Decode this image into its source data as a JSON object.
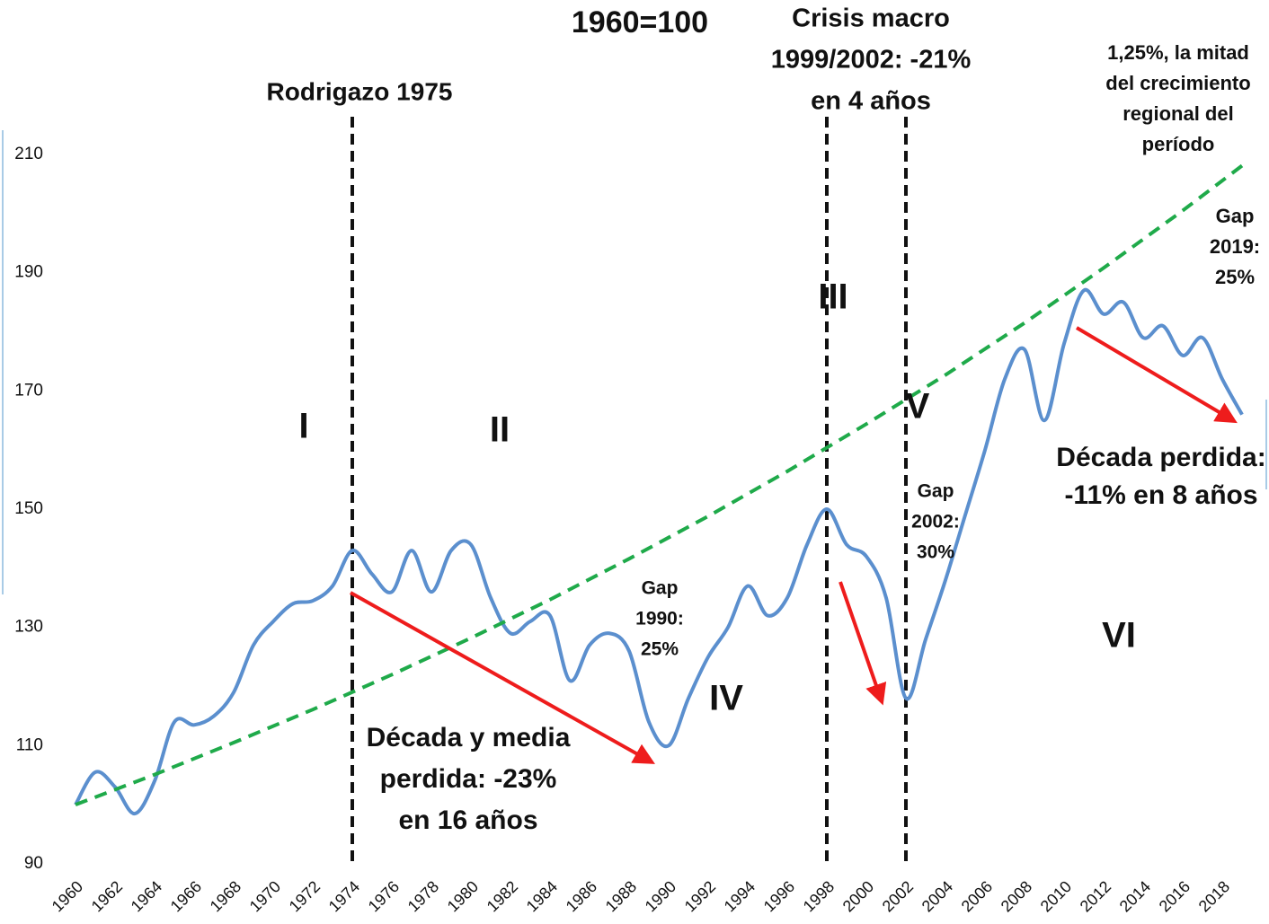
{
  "chart_data": {
    "type": "line",
    "title": "1960=100",
    "xlim": [
      1960,
      2019
    ],
    "ylim": [
      90,
      210
    ],
    "yticks": [
      90,
      110,
      130,
      150,
      170,
      190,
      210
    ],
    "xticks": [
      1960,
      1962,
      1964,
      1966,
      1968,
      1970,
      1972,
      1974,
      1976,
      1978,
      1980,
      1982,
      1984,
      1986,
      1988,
      1990,
      1992,
      1994,
      1996,
      1998,
      2000,
      2002,
      2004,
      2006,
      2008,
      2010,
      2012,
      2014,
      2016,
      2018
    ],
    "grid": false,
    "series": [
      {
        "color": "#5b8fce",
        "x": [
          1960,
          1961,
          1962,
          1963,
          1964,
          1965,
          1966,
          1967,
          1968,
          1969,
          1970,
          1971,
          1972,
          1973,
          1974,
          1975,
          1976,
          1977,
          1978,
          1979,
          1980,
          1981,
          1982,
          1983,
          1984,
          1985,
          1986,
          1987,
          1988,
          1989,
          1990,
          1991,
          1992,
          1993,
          1994,
          1995,
          1996,
          1997,
          1998,
          1999,
          2000,
          2001,
          2002,
          2003,
          2004,
          2005,
          2006,
          2007,
          2008,
          2009,
          2010,
          2011,
          2012,
          2013,
          2014,
          2015,
          2016,
          2017,
          2018,
          2019
        ],
        "values": [
          100,
          105.5,
          103,
          98.5,
          104,
          114,
          113.5,
          115,
          119,
          127,
          131,
          134,
          134.5,
          137,
          143,
          139,
          136,
          143,
          136,
          143,
          144,
          135,
          129,
          131,
          132,
          121,
          127,
          129,
          126,
          114,
          110,
          118,
          125,
          130,
          137,
          132,
          135,
          144,
          150,
          144,
          142,
          135,
          118,
          128,
          138,
          149,
          160,
          172,
          177,
          165,
          178,
          187,
          183,
          185,
          179,
          181,
          176,
          179,
          172,
          166
        ]
      },
      {
        "color": "#1faa4a",
        "dashed": true,
        "x": [
          1960,
          1964,
          1968,
          1972,
          1976,
          1980,
          1984,
          1988,
          1992,
          1996,
          2000,
          2004,
          2008,
          2012,
          2016,
          2019
        ],
        "values": [
          100,
          105.1,
          110.5,
          116.1,
          122.0,
          128.2,
          134.7,
          141.6,
          148.8,
          156.4,
          164.4,
          172.7,
          181.5,
          190.8,
          200.5,
          208.1
        ]
      }
    ],
    "vlines": [
      1974,
      1998,
      2002
    ],
    "annotations": [
      {
        "lines": [
          "Rodrigazo 1975"
        ]
      },
      {
        "lines": [
          "Crisis macro",
          "1999/2002: -21%",
          "en 4 años"
        ]
      },
      {
        "lines": [
          "1,25%, la mitad",
          "del crecimiento",
          "regional del",
          "período"
        ]
      },
      {
        "lines": [
          "Gap",
          "2019:",
          "25%"
        ]
      },
      {
        "lines": [
          "Gap",
          "1990:",
          "25%"
        ]
      },
      {
        "lines": [
          "Gap",
          "2002:",
          "30%"
        ]
      },
      {
        "lines": [
          "Década y media",
          "perdida: -23%",
          "en 16 años"
        ]
      },
      {
        "lines": [
          "Década perdida:",
          "-11% en 8 años"
        ]
      },
      {
        "lines": [
          "I"
        ]
      },
      {
        "lines": [
          "II"
        ]
      },
      {
        "lines": [
          "III"
        ]
      },
      {
        "lines": [
          "IV"
        ]
      },
      {
        "lines": [
          "V"
        ]
      },
      {
        "lines": [
          "VI"
        ]
      }
    ]
  }
}
